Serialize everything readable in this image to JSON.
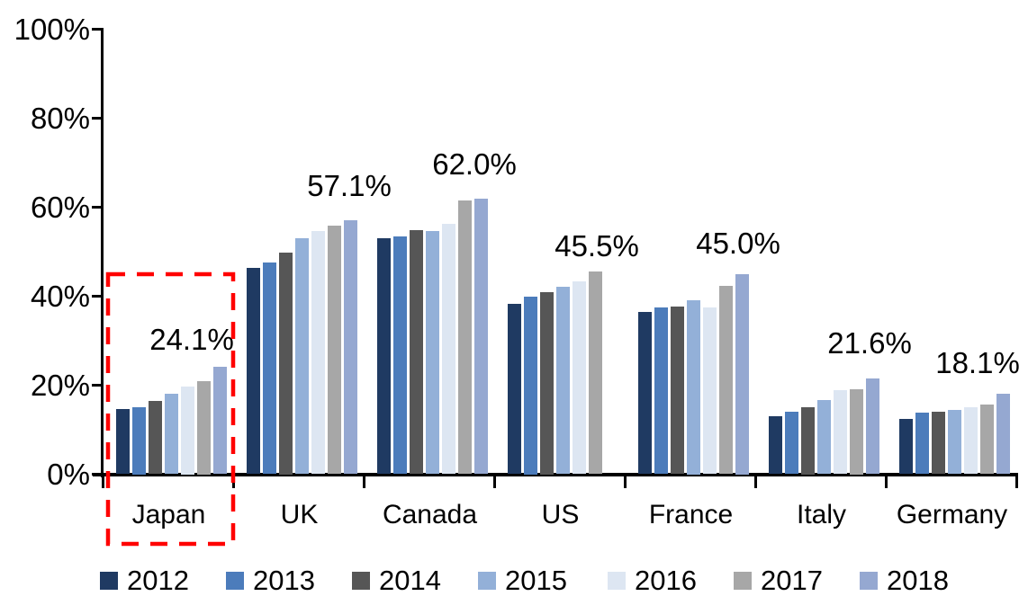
{
  "chart_data": {
    "type": "bar",
    "title": "",
    "categories": [
      "Japan",
      "UK",
      "Canada",
      "US",
      "France",
      "Italy",
      "Germany"
    ],
    "series": [
      {
        "name": "2012",
        "color": "#1F3A62",
        "values": [
          14.7,
          46.3,
          53.0,
          38.2,
          36.4,
          13.0,
          12.4
        ]
      },
      {
        "name": "2013",
        "color": "#4C7CBB",
        "values": [
          15.0,
          47.6,
          53.4,
          39.9,
          37.5,
          14.0,
          13.9
        ]
      },
      {
        "name": "2014",
        "color": "#565656",
        "values": [
          16.4,
          49.8,
          54.9,
          41.0,
          37.6,
          15.0,
          14.1
        ]
      },
      {
        "name": "2015",
        "color": "#93B0D8",
        "values": [
          18.0,
          53.0,
          54.6,
          42.1,
          39.2,
          16.7,
          14.5
        ]
      },
      {
        "name": "2016",
        "color": "#DDE6F2",
        "values": [
          19.7,
          54.7,
          56.2,
          43.4,
          37.4,
          18.9,
          15.1
        ]
      },
      {
        "name": "2017",
        "color": "#A7A7A7",
        "values": [
          20.9,
          55.8,
          61.5,
          45.5,
          42.3,
          19.2,
          15.7
        ]
      },
      {
        "name": "2018",
        "color": "#95A8D1",
        "values": [
          24.1,
          57.1,
          62.0,
          null,
          45.0,
          21.6,
          18.1
        ]
      }
    ],
    "value_labels": [
      "24.1%",
      "57.1%",
      "62.0%",
      "45.5%",
      "45.0%",
      "21.6%",
      "18.1%"
    ],
    "y_ticks": [
      "0%",
      "20%",
      "40%",
      "60%",
      "80%",
      "100%"
    ],
    "ylim": [
      0,
      100
    ],
    "grid": false,
    "legend_position": "bottom",
    "axis_color": "#000000",
    "highlight": {
      "target_category": "Japan",
      "style": "dashed-box",
      "color": "#FF0000"
    }
  }
}
